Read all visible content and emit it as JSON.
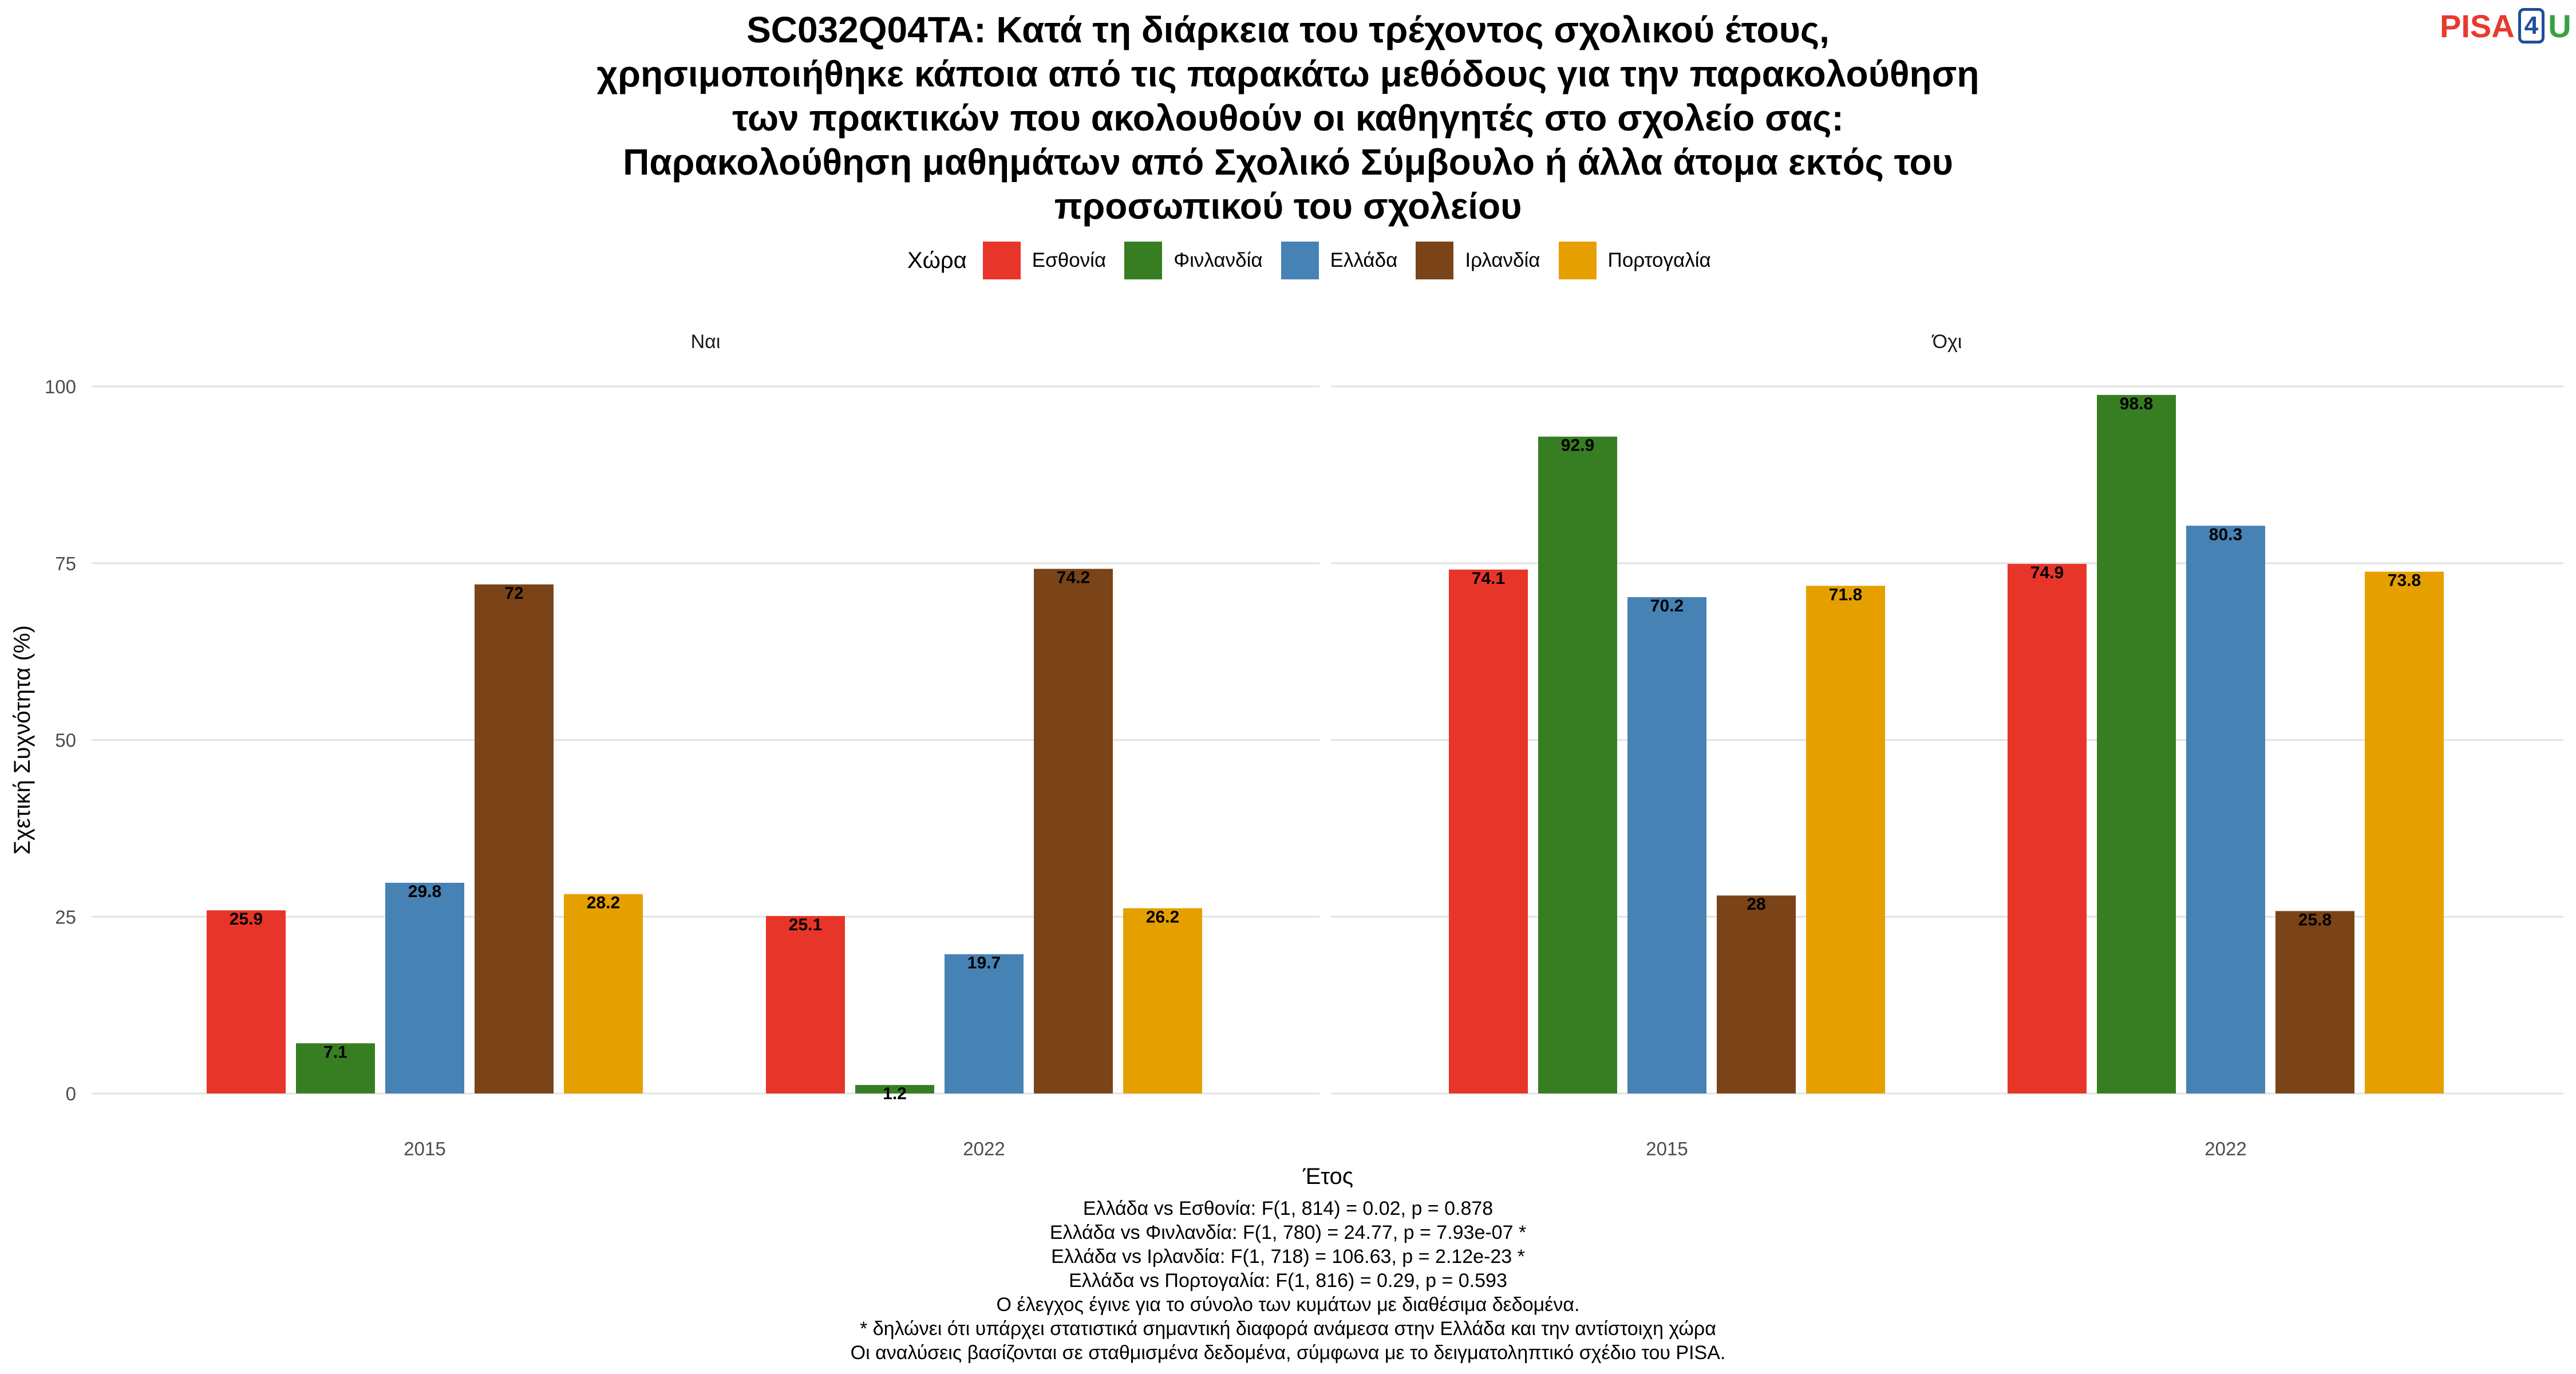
{
  "title_lines": [
    "SC032Q04TA: Κατά τη διάρκεια του τρέχοντος σχολικού έτους,",
    "χρησιμοποιήθηκε κάποια από τις παρακάτω μεθόδους για την παρακολούθηση",
    "των πρακτικών που ακολουθούν οι καθηγητές στο σχολείο σας:",
    "Παρακολούθηση μαθημάτων από Σχολικό Σύμβουλο ή άλλα άτομα εκτός του",
    "προσωπικού του σχολείου"
  ],
  "logo": {
    "pisa": "PISA",
    "four": "4",
    "u": "U"
  },
  "legend": {
    "title": "Χώρα",
    "items": [
      {
        "label": "Εσθονία",
        "color": "#e8352a"
      },
      {
        "label": "Φινλανδία",
        "color": "#377e22"
      },
      {
        "label": "Ελλάδα",
        "color": "#4682b4"
      },
      {
        "label": "Ιρλανδία",
        "color": "#7a4418"
      },
      {
        "label": "Πορτογαλία",
        "color": "#e5a000"
      }
    ]
  },
  "chart_data": {
    "type": "bar",
    "xlabel": "Έτος",
    "ylabel": "Σχετική Συχνότητα (%)",
    "ylim": [
      0,
      100
    ],
    "yticks": [
      0,
      25,
      50,
      75,
      100
    ],
    "categories": [
      "2015",
      "2022"
    ],
    "series_names": [
      "Εσθονία",
      "Φινλανδία",
      "Ελλάδα",
      "Ιρλανδία",
      "Πορτογαλία"
    ],
    "grid": true,
    "legend_position": "top",
    "facets": [
      {
        "title": "Ναι",
        "values": {
          "2015": [
            25.9,
            7.1,
            29.8,
            72,
            28.2
          ],
          "2022": [
            25.1,
            1.2,
            19.7,
            74.2,
            26.2
          ]
        }
      },
      {
        "title": "Όχι",
        "values": {
          "2015": [
            74.1,
            92.9,
            70.2,
            28,
            71.8
          ],
          "2022": [
            74.9,
            98.8,
            80.3,
            25.8,
            73.8
          ]
        }
      }
    ]
  },
  "notes": [
    "Ελλάδα vs Εσθονία: F(1, 814) = 0.02, p = 0.878",
    "Ελλάδα vs Φινλανδία: F(1, 780) = 24.77, p = 7.93e-07 *",
    "Ελλάδα vs Ιρλανδία: F(1, 718) = 106.63, p = 2.12e-23 *",
    "Ελλάδα vs Πορτογαλία: F(1, 816) = 0.29, p = 0.593",
    "Ο έλεγχος έγινε για το σύνολο των κυμάτων με διαθέσιμα δεδομένα.",
    "* δηλώνει ότι υπάρχει στατιστικά σημαντική διαφορά ανάμεσα στην Ελλάδα και την αντίστοιχη χώρα",
    "Οι αναλύσεις βασίζονται σε σταθμισμένα δεδομένα, σύμφωνα με το δειγματοληπτικό σχέδιο του PISA."
  ]
}
